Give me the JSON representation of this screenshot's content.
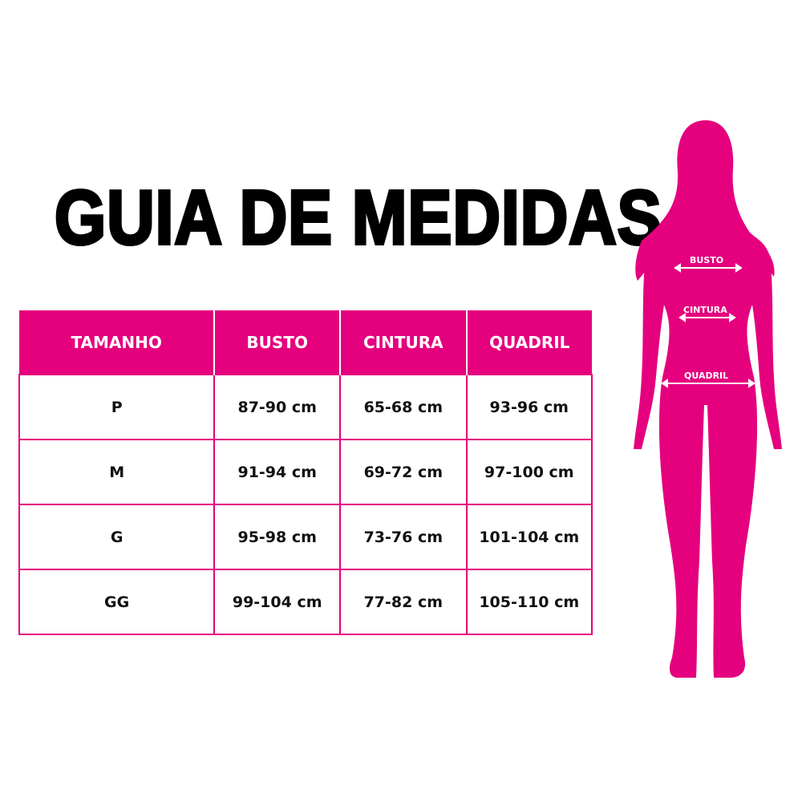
{
  "title": "GUIA DE MEDIDAS",
  "accent_color": "#e5007e",
  "table": {
    "headers": [
      "TAMANHO",
      "BUSTO",
      "CINTURA",
      "QUADRIL"
    ],
    "rows": [
      [
        "P",
        "87-90 cm",
        "65-68 cm",
        "93-96 cm"
      ],
      [
        "M",
        "91-94 cm",
        "69-72 cm",
        "97-100 cm"
      ],
      [
        "G",
        "95-98 cm",
        "73-76 cm",
        "101-104 cm"
      ],
      [
        "GG",
        "99-104 cm",
        "77-82 cm",
        "105-110 cm"
      ]
    ]
  },
  "figure": {
    "labels": {
      "busto": "BUSTO",
      "cintura": "CINTURA",
      "quadril": "QUADRIL"
    }
  }
}
